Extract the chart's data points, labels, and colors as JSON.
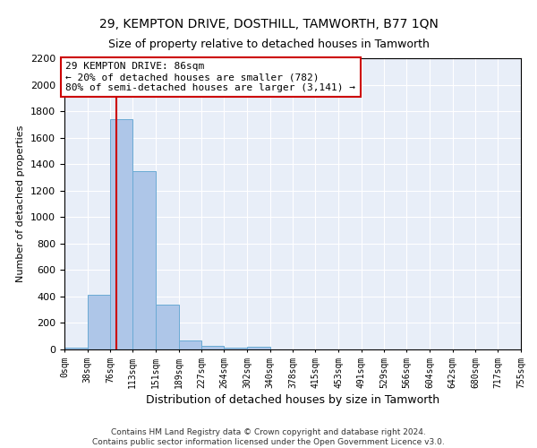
{
  "title1": "29, KEMPTON DRIVE, DOSTHILL, TAMWORTH, B77 1QN",
  "title2": "Size of property relative to detached houses in Tamworth",
  "xlabel": "Distribution of detached houses by size in Tamworth",
  "ylabel": "Number of detached properties",
  "footer_line1": "Contains HM Land Registry data © Crown copyright and database right 2024.",
  "footer_line2": "Contains public sector information licensed under the Open Government Licence v3.0.",
  "annotation_line1": "29 KEMPTON DRIVE: 86sqm",
  "annotation_line2": "← 20% of detached houses are smaller (782)",
  "annotation_line3": "80% of semi-detached houses are larger (3,141) →",
  "bar_color": "#aec6e8",
  "bar_edge_color": "#6aaad4",
  "vline_color": "#cc0000",
  "annotation_box_color": "#cc0000",
  "background_color": "#e8eef8",
  "bin_edges": [
    0,
    38,
    76,
    113,
    151,
    189,
    227,
    264,
    302,
    340,
    378,
    415,
    453,
    491,
    529,
    566,
    604,
    642,
    680,
    717,
    755
  ],
  "bar_heights": [
    15,
    410,
    1740,
    1350,
    340,
    70,
    25,
    15,
    20,
    0,
    0,
    0,
    0,
    0,
    0,
    0,
    0,
    0,
    0,
    0
  ],
  "vline_x": 86,
  "ylim": [
    0,
    2200
  ],
  "yticks": [
    0,
    200,
    400,
    600,
    800,
    1000,
    1200,
    1400,
    1600,
    1800,
    2000,
    2200
  ],
  "tick_labels": [
    "0sqm",
    "38sqm",
    "76sqm",
    "113sqm",
    "151sqm",
    "189sqm",
    "227sqm",
    "264sqm",
    "302sqm",
    "340sqm",
    "378sqm",
    "415sqm",
    "453sqm",
    "491sqm",
    "529sqm",
    "566sqm",
    "604sqm",
    "642sqm",
    "680sqm",
    "717sqm",
    "755sqm"
  ]
}
